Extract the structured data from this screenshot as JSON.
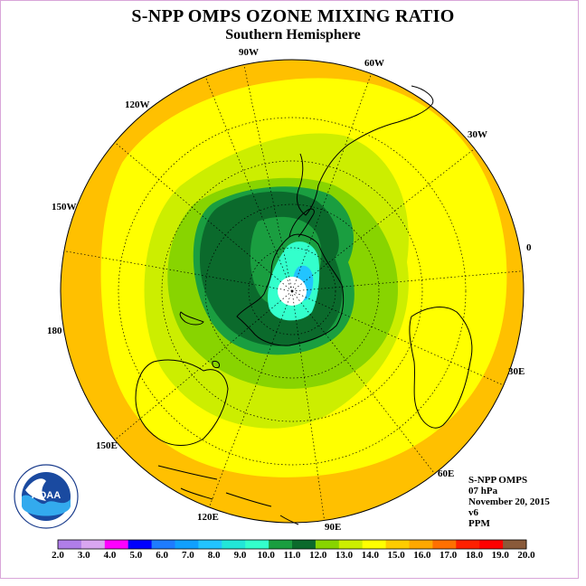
{
  "title": "S-NPP OMPS OZONE MIXING RATIO",
  "subtitle": "Southern Hemisphere",
  "longitude_labels": [
    "90W",
    "60W",
    "30W",
    "0",
    "30E",
    "60E",
    "90E",
    "120E",
    "150E",
    "180",
    "150W",
    "120W"
  ],
  "info": {
    "instrument": "S-NPP OMPS",
    "level": "07 hPa",
    "date": "November 20, 2015",
    "version": "v6",
    "units": "PPM"
  },
  "logo_text": "NOAA",
  "colorbar": {
    "ticks": [
      "2.0",
      "3.0",
      "4.0",
      "5.0",
      "6.0",
      "7.0",
      "8.0",
      "9.0",
      "10.0",
      "11.0",
      "12.0",
      "13.0",
      "14.0",
      "15.0",
      "16.0",
      "17.0",
      "18.0",
      "19.0",
      "20.0"
    ],
    "colors": [
      "#b07ee8",
      "#d9a6f0",
      "#ff00ff",
      "#0000ff",
      "#1e7cff",
      "#10a0ff",
      "#22c4ff",
      "#22e6d8",
      "#33ffcc",
      "#1a9e40",
      "#0b6a2c",
      "#88d400",
      "#ccee00",
      "#ffff00",
      "#ffcc00",
      "#ffa800",
      "#ff7000",
      "#ff2000",
      "#ff0000",
      "#8a5a3a"
    ]
  },
  "colors": {
    "band_outer": "#ffc000",
    "band_yellow": "#ffff00",
    "band_yellowgreen": "#ccee00",
    "band_lightgreen": "#88d400",
    "band_green": "#1a9e40",
    "band_darkgreen": "#0b6a2c",
    "band_aqua": "#33ffcc",
    "band_cyan": "#22c4ff",
    "pole": "#ffffff"
  }
}
